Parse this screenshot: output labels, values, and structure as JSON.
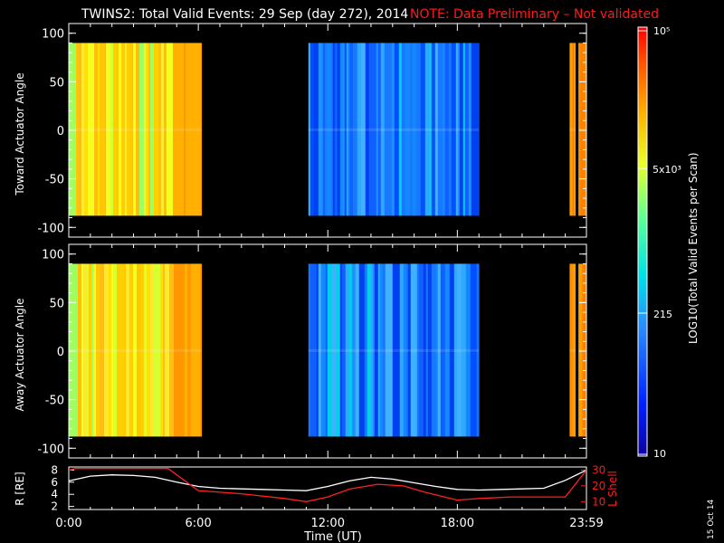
{
  "header": {
    "title": "TWINS2: Total Valid Events: 29 Sep (day 272), 2014",
    "note": "NOTE: Data Preliminary – Not validated"
  },
  "colorbar": {
    "label": "LOG10(Total Valid Events per Scan)",
    "tick_labels": [
      "10⁵",
      "5x10³",
      "215",
      "10"
    ]
  },
  "x_axis": {
    "label": "Time (UT)",
    "tick_labels": [
      "0:00",
      "6:00",
      "12:00",
      "18:00",
      "23:59"
    ]
  },
  "stamp": "15 Oct 14",
  "colors": {
    "title": "#ffffff",
    "note": "#ff1a1a",
    "r_line": "#ffffff",
    "lshell_line": "#ff2020"
  },
  "chart_data": [
    {
      "type": "heatmap",
      "panel": "top",
      "ylabel": "Toward Actuator Angle",
      "y_tick_labels": [
        "100",
        "50",
        "0",
        "-50",
        "-100"
      ],
      "xlim_hours": [
        0,
        23.98
      ],
      "ylim": [
        -110,
        110
      ],
      "data_ylim": [
        -88,
        90
      ],
      "colorbar_range_log10": [
        1,
        5
      ],
      "segments": [
        {
          "start_hours": 0.0,
          "end_hours": 6.15,
          "level": "yellow-orange, ~5x10^3–10^4"
        },
        {
          "start_hours": 11.1,
          "end_hours": 19.0,
          "level": "blue, ~215–10^3"
        },
        {
          "start_hours": 23.2,
          "end_hours": 23.98,
          "level": "orange, ~10^4"
        }
      ]
    },
    {
      "type": "heatmap",
      "panel": "middle",
      "ylabel": "Away Actuator Angle",
      "y_tick_labels": [
        "100",
        "50",
        "0",
        "-50",
        "-100"
      ],
      "xlim_hours": [
        0,
        23.98
      ],
      "ylim": [
        -110,
        110
      ],
      "data_ylim": [
        -88,
        90
      ],
      "colorbar_range_log10": [
        1,
        5
      ],
      "segments": [
        {
          "start_hours": 0.0,
          "end_hours": 6.15,
          "level": "yellow-orange, ~5x10^3–10^4"
        },
        {
          "start_hours": 11.1,
          "end_hours": 19.0,
          "level": "blue, ~215–10^3"
        },
        {
          "start_hours": 23.2,
          "end_hours": 23.98,
          "level": "orange, ~10^4"
        }
      ]
    },
    {
      "type": "line",
      "panel": "bottom",
      "ylabel_left": "R [RE]",
      "ylabel_right": "L Shell",
      "y_left_tick_labels": [
        "8",
        "6",
        "4",
        "2"
      ],
      "y_right_tick_labels": [
        "30",
        "20",
        "10"
      ],
      "ylim_left": [
        1.5,
        8.5
      ],
      "ylim_right": [
        5,
        32
      ],
      "xlim_hours": [
        0,
        23.98
      ],
      "series": [
        {
          "name": "R [RE]",
          "axis": "left",
          "x": [
            0,
            1,
            2,
            3,
            4,
            5,
            6,
            7,
            8,
            9,
            10,
            11,
            12,
            13,
            14,
            15,
            16,
            17,
            18,
            19,
            20,
            21,
            22,
            23,
            23.98
          ],
          "y": [
            6.2,
            7.0,
            7.2,
            7.1,
            6.8,
            6.0,
            5.3,
            5.0,
            4.9,
            4.8,
            4.7,
            4.6,
            5.3,
            6.2,
            6.8,
            6.5,
            5.9,
            5.3,
            4.8,
            4.7,
            4.8,
            4.9,
            5.0,
            6.3,
            8.0
          ]
        },
        {
          "name": "L Shell",
          "axis": "right",
          "x": [
            0.0,
            0.3,
            4.6,
            6.0,
            8.0,
            10.0,
            11.0,
            12.0,
            13.0,
            14.3,
            15.5,
            16.5,
            18.0,
            19.0,
            20.5,
            23.0,
            23.98
          ],
          "y": [
            30,
            31,
            31,
            17,
            15,
            12,
            10,
            13,
            18,
            21,
            20,
            16,
            11,
            12,
            13,
            13,
            30
          ]
        }
      ]
    }
  ]
}
